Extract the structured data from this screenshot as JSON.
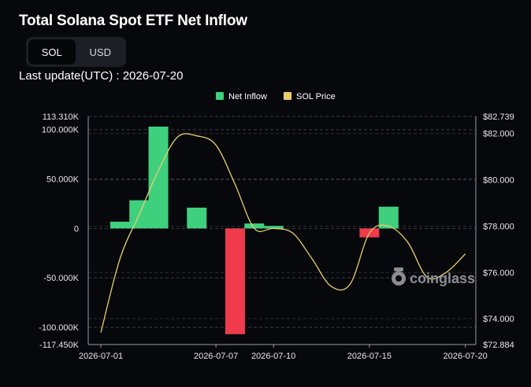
{
  "title": "Total Solana Spot ETF Net Inflow",
  "toggle": {
    "options": [
      "SOL",
      "USD"
    ],
    "selected": "SOL"
  },
  "last_update": "Last update(UTC) : 2026-07-20",
  "watermark": "coinglass",
  "colors": {
    "positive": "#3fd07e",
    "negative": "#ef3b4b",
    "price": "#e9cf6a",
    "grid": "#3a3d44"
  },
  "chart_data": {
    "type": "bar",
    "x_tick_labels": [
      "2026-07-01",
      "2026-07-07",
      "2026-07-10",
      "2026-07-15",
      "2026-07-20"
    ],
    "left_axis": {
      "min": -117450,
      "max": 113310,
      "tick_labels": [
        "113.310K",
        "100.000K",
        "50.000K",
        "0",
        "-50.000K",
        "-100.000K",
        "-117.450K"
      ],
      "tick_values": [
        113310,
        100000,
        50000,
        0,
        -50000,
        -100000,
        -117450
      ]
    },
    "right_axis": {
      "min": 72.884,
      "max": 82.739,
      "tick_labels": [
        "$82.739",
        "$82.000",
        "$80.000",
        "$78.000",
        "$76.000",
        "$74.000",
        "$72.884"
      ],
      "tick_values": [
        82.739,
        82.0,
        80.0,
        78.0,
        76.0,
        74.0,
        72.884
      ]
    },
    "legend": [
      "Net Inflow",
      "SOL Price"
    ],
    "legend_position": "top-center",
    "series": [
      {
        "name": "Net Inflow",
        "type": "bar",
        "points": [
          {
            "x": "2026-07-02",
            "value": 6800
          },
          {
            "x": "2026-07-03",
            "value": 28500
          },
          {
            "x": "2026-07-04",
            "value": 103000
          },
          {
            "x": "2026-07-06",
            "value": 21000
          },
          {
            "x": "2026-07-08",
            "value": -107000
          },
          {
            "x": "2026-07-09",
            "value": 5000
          },
          {
            "x": "2026-07-10",
            "value": 2500
          },
          {
            "x": "2026-07-15",
            "value": -9000
          },
          {
            "x": "2026-07-16",
            "value": 22000
          }
        ]
      },
      {
        "name": "SOL Price",
        "type": "line",
        "points": [
          {
            "x": "2026-07-01",
            "value": 73.4
          },
          {
            "x": "2026-07-02",
            "value": 76.6
          },
          {
            "x": "2026-07-03",
            "value": 78.5
          },
          {
            "x": "2026-07-04",
            "value": 80.4
          },
          {
            "x": "2026-07-05",
            "value": 81.85
          },
          {
            "x": "2026-07-06",
            "value": 81.9
          },
          {
            "x": "2026-07-07",
            "value": 81.5
          },
          {
            "x": "2026-07-08",
            "value": 79.8
          },
          {
            "x": "2026-07-09",
            "value": 77.9
          },
          {
            "x": "2026-07-10",
            "value": 77.9
          },
          {
            "x": "2026-07-11",
            "value": 77.7
          },
          {
            "x": "2026-07-12",
            "value": 76.6
          },
          {
            "x": "2026-07-13",
            "value": 75.4
          },
          {
            "x": "2026-07-14",
            "value": 75.5
          },
          {
            "x": "2026-07-15",
            "value": 77.7
          },
          {
            "x": "2026-07-16",
            "value": 78.0
          },
          {
            "x": "2026-07-17",
            "value": 77.3
          },
          {
            "x": "2026-07-18",
            "value": 75.8
          },
          {
            "x": "2026-07-19",
            "value": 76.0
          },
          {
            "x": "2026-07-20",
            "value": 76.8
          }
        ]
      }
    ],
    "grid": true
  }
}
